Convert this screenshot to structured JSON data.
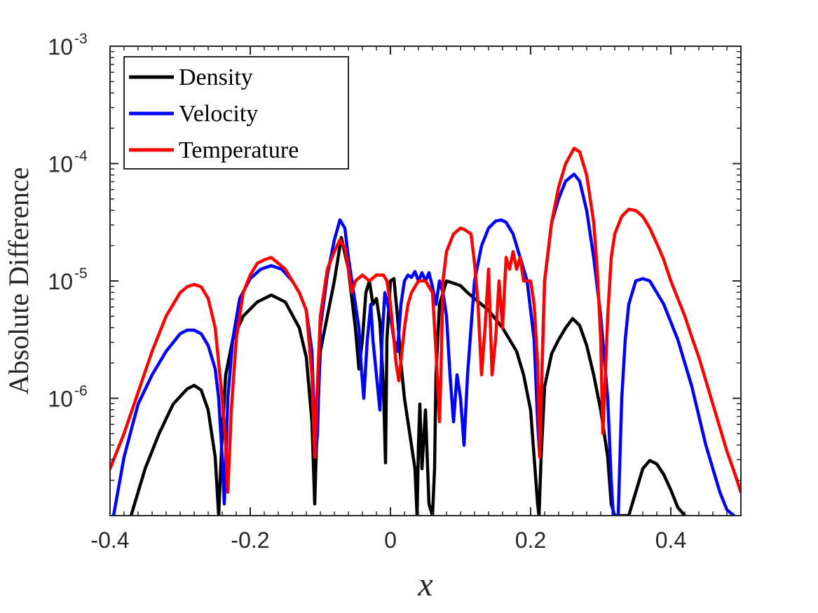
{
  "chart_data": {
    "type": "line",
    "title": "",
    "xlabel": "x",
    "ylabel": "Absolute Difference",
    "xlim": [
      -0.4,
      0.5
    ],
    "ylim_log10": [
      -7.0,
      -3.0
    ],
    "yscale": "log",
    "grid": false,
    "legend_position": "top-left",
    "x_ticks": [
      {
        "value": -0.4,
        "label": "-0.4"
      },
      {
        "value": -0.2,
        "label": "-0.2"
      },
      {
        "value": 0.0,
        "label": "0"
      },
      {
        "value": 0.2,
        "label": "0.2"
      },
      {
        "value": 0.4,
        "label": "0.4"
      }
    ],
    "y_ticks": [
      {
        "log10": -3,
        "base": "10",
        "exp": "-3"
      },
      {
        "log10": -4,
        "base": "10",
        "exp": "-4"
      },
      {
        "log10": -5,
        "base": "10",
        "exp": "-5"
      },
      {
        "log10": -6,
        "base": "10",
        "exp": "-6"
      }
    ],
    "series": [
      {
        "name": "Density",
        "color": "#000000",
        "x": [
          -0.37,
          -0.35,
          -0.33,
          -0.31,
          -0.29,
          -0.28,
          -0.27,
          -0.26,
          -0.25,
          -0.247,
          -0.245,
          -0.24,
          -0.235,
          -0.225,
          -0.21,
          -0.19,
          -0.17,
          -0.15,
          -0.13,
          -0.12,
          -0.112,
          -0.108,
          -0.105,
          -0.1,
          -0.09,
          -0.08,
          -0.07,
          -0.06,
          -0.05,
          -0.045,
          -0.04,
          -0.035,
          -0.03,
          -0.025,
          -0.02,
          -0.015,
          -0.01,
          -0.007,
          -0.005,
          0.0,
          0.005,
          0.01,
          0.015,
          0.02,
          0.025,
          0.03,
          0.035,
          0.038,
          0.04,
          0.042,
          0.045,
          0.05,
          0.055,
          0.06,
          0.063,
          0.065,
          0.07,
          0.08,
          0.09,
          0.1,
          0.11,
          0.12,
          0.14,
          0.16,
          0.18,
          0.19,
          0.2,
          0.21,
          0.212,
          0.215,
          0.22,
          0.23,
          0.24,
          0.25,
          0.26,
          0.27,
          0.28,
          0.29,
          0.3,
          0.31,
          0.315,
          0.32,
          0.325,
          0.33,
          0.34,
          0.35,
          0.36,
          0.37,
          0.38,
          0.39,
          0.4,
          0.41,
          0.42
        ],
        "log10_y": [
          -7.0,
          -6.6,
          -6.3,
          -6.05,
          -5.92,
          -5.89,
          -5.93,
          -6.1,
          -6.5,
          -6.8,
          -7.0,
          -6.3,
          -5.8,
          -5.5,
          -5.3,
          -5.18,
          -5.12,
          -5.18,
          -5.4,
          -5.65,
          -6.2,
          -6.9,
          -6.3,
          -5.6,
          -5.3,
          -5.0,
          -4.63,
          -4.9,
          -5.4,
          -5.75,
          -5.5,
          -5.1,
          -5.0,
          -5.2,
          -5.15,
          -5.35,
          -5.9,
          -6.55,
          -5.5,
          -5.0,
          -4.98,
          -5.3,
          -5.7,
          -6.0,
          -6.2,
          -6.4,
          -6.6,
          -7.0,
          -6.4,
          -6.05,
          -6.6,
          -6.1,
          -6.9,
          -7.0,
          -6.6,
          -5.8,
          -5.2,
          -5.0,
          -5.02,
          -5.04,
          -5.1,
          -5.15,
          -5.25,
          -5.4,
          -5.6,
          -5.8,
          -6.1,
          -6.9,
          -7.0,
          -6.5,
          -5.9,
          -5.62,
          -5.5,
          -5.4,
          -5.32,
          -5.38,
          -5.55,
          -5.8,
          -6.1,
          -6.5,
          -6.9,
          -7.0,
          -7.0,
          -7.0,
          -7.0,
          -6.8,
          -6.6,
          -6.53,
          -6.56,
          -6.65,
          -6.78,
          -6.93,
          -7.0
        ]
      },
      {
        "name": "Velocity",
        "color": "#0000ff",
        "x": [
          -0.395,
          -0.38,
          -0.36,
          -0.34,
          -0.32,
          -0.3,
          -0.29,
          -0.28,
          -0.27,
          -0.26,
          -0.25,
          -0.245,
          -0.24,
          -0.237,
          -0.232,
          -0.225,
          -0.215,
          -0.2,
          -0.185,
          -0.17,
          -0.155,
          -0.14,
          -0.13,
          -0.12,
          -0.112,
          -0.107,
          -0.104,
          -0.1,
          -0.09,
          -0.08,
          -0.072,
          -0.065,
          -0.06,
          -0.055,
          -0.05,
          -0.045,
          -0.042,
          -0.038,
          -0.033,
          -0.028,
          -0.025,
          -0.02,
          -0.015,
          -0.012,
          -0.008,
          -0.004,
          0.0,
          0.005,
          0.01,
          0.015,
          0.02,
          0.025,
          0.03,
          0.035,
          0.04,
          0.045,
          0.05,
          0.055,
          0.06,
          0.065,
          0.07,
          0.075,
          0.08,
          0.085,
          0.09,
          0.095,
          0.1,
          0.105,
          0.11,
          0.12,
          0.13,
          0.14,
          0.15,
          0.158,
          0.165,
          0.175,
          0.185,
          0.195,
          0.205,
          0.21,
          0.213,
          0.216,
          0.22,
          0.23,
          0.24,
          0.25,
          0.262,
          0.27,
          0.28,
          0.29,
          0.3,
          0.31,
          0.315,
          0.318,
          0.32,
          0.325,
          0.33,
          0.335,
          0.34,
          0.35,
          0.36,
          0.37,
          0.38,
          0.39,
          0.4,
          0.41,
          0.42,
          0.43,
          0.44,
          0.45,
          0.46,
          0.47,
          0.48,
          0.49
        ],
        "log10_y": [
          -7.0,
          -6.5,
          -6.05,
          -5.8,
          -5.6,
          -5.45,
          -5.42,
          -5.42,
          -5.45,
          -5.55,
          -5.75,
          -6.0,
          -6.5,
          -6.9,
          -6.0,
          -5.5,
          -5.15,
          -4.98,
          -4.9,
          -4.87,
          -4.9,
          -5.0,
          -5.1,
          -5.25,
          -5.6,
          -6.5,
          -6.3,
          -5.4,
          -4.95,
          -4.65,
          -4.48,
          -4.55,
          -4.8,
          -5.0,
          -5.2,
          -5.4,
          -5.7,
          -6.0,
          -5.5,
          -5.2,
          -5.5,
          -5.8,
          -6.1,
          -5.5,
          -5.1,
          -5.2,
          -5.3,
          -5.5,
          -5.6,
          -5.2,
          -5.0,
          -4.95,
          -4.97,
          -4.92,
          -5.0,
          -4.93,
          -5.0,
          -4.93,
          -5.05,
          -5.2,
          -5.0,
          -5.1,
          -5.3,
          -5.8,
          -6.2,
          -5.8,
          -6.0,
          -6.4,
          -5.8,
          -5.0,
          -4.7,
          -4.55,
          -4.49,
          -4.48,
          -4.5,
          -4.6,
          -4.8,
          -5.0,
          -5.5,
          -6.2,
          -6.5,
          -5.8,
          -5.0,
          -4.5,
          -4.3,
          -4.15,
          -4.09,
          -4.15,
          -4.4,
          -4.8,
          -5.3,
          -6.0,
          -6.7,
          -7.0,
          -7.0,
          -7.0,
          -6.0,
          -5.5,
          -5.2,
          -5.0,
          -4.98,
          -5.0,
          -5.1,
          -5.2,
          -5.35,
          -5.5,
          -5.7,
          -5.9,
          -6.15,
          -6.4,
          -6.6,
          -6.8,
          -6.95,
          -7.0
        ]
      },
      {
        "name": "Temperature",
        "color": "#ff0000",
        "x": [
          -0.4,
          -0.38,
          -0.36,
          -0.34,
          -0.32,
          -0.3,
          -0.29,
          -0.28,
          -0.27,
          -0.26,
          -0.25,
          -0.245,
          -0.24,
          -0.235,
          -0.232,
          -0.227,
          -0.22,
          -0.21,
          -0.2,
          -0.19,
          -0.18,
          -0.17,
          -0.16,
          -0.15,
          -0.14,
          -0.13,
          -0.12,
          -0.112,
          -0.108,
          -0.105,
          -0.1,
          -0.09,
          -0.08,
          -0.072,
          -0.065,
          -0.06,
          -0.055,
          -0.05,
          -0.04,
          -0.03,
          -0.02,
          -0.01,
          -0.005,
          0.0,
          0.005,
          0.008,
          0.012,
          0.02,
          0.025,
          0.03,
          0.04,
          0.05,
          0.06,
          0.065,
          0.07,
          0.072,
          0.075,
          0.08,
          0.09,
          0.1,
          0.105,
          0.11,
          0.115,
          0.12,
          0.125,
          0.13,
          0.135,
          0.14,
          0.145,
          0.15,
          0.155,
          0.16,
          0.165,
          0.17,
          0.175,
          0.18,
          0.185,
          0.19,
          0.2,
          0.205,
          0.21,
          0.213,
          0.216,
          0.22,
          0.23,
          0.24,
          0.25,
          0.262,
          0.27,
          0.28,
          0.29,
          0.295,
          0.3,
          0.303,
          0.306,
          0.31,
          0.315,
          0.32,
          0.33,
          0.34,
          0.35,
          0.36,
          0.37,
          0.38,
          0.39,
          0.4,
          0.41,
          0.42,
          0.43,
          0.44,
          0.45,
          0.46,
          0.47,
          0.48,
          0.49,
          0.5
        ],
        "log10_y": [
          -6.6,
          -6.3,
          -5.95,
          -5.6,
          -5.3,
          -5.1,
          -5.05,
          -5.03,
          -5.05,
          -5.15,
          -5.4,
          -5.7,
          -6.0,
          -6.4,
          -6.8,
          -6.1,
          -5.5,
          -5.1,
          -4.95,
          -4.85,
          -4.82,
          -4.8,
          -4.85,
          -4.9,
          -5.0,
          -5.1,
          -5.25,
          -5.8,
          -6.5,
          -6.0,
          -5.3,
          -4.9,
          -4.75,
          -4.65,
          -4.72,
          -4.9,
          -5.1,
          -5.0,
          -4.95,
          -5.0,
          -4.95,
          -4.95,
          -5.0,
          -5.2,
          -5.5,
          -5.7,
          -5.85,
          -5.4,
          -5.2,
          -5.1,
          -5.0,
          -5.0,
          -5.1,
          -5.6,
          -6.2,
          -5.8,
          -5.0,
          -4.75,
          -4.6,
          -4.55,
          -4.56,
          -4.58,
          -4.6,
          -4.85,
          -5.2,
          -5.8,
          -5.4,
          -4.9,
          -5.8,
          -5.5,
          -5.0,
          -5.4,
          -4.8,
          -4.9,
          -4.75,
          -4.9,
          -4.8,
          -5.0,
          -5.0,
          -5.2,
          -5.7,
          -6.5,
          -5.8,
          -5.0,
          -4.5,
          -4.2,
          -4.0,
          -3.87,
          -3.9,
          -4.1,
          -4.5,
          -4.9,
          -5.5,
          -6.3,
          -5.9,
          -5.3,
          -4.8,
          -4.6,
          -4.45,
          -4.39,
          -4.4,
          -4.45,
          -4.55,
          -4.68,
          -4.82,
          -5.0,
          -5.15,
          -5.3,
          -5.48,
          -5.65,
          -5.85,
          -6.05,
          -6.25,
          -6.45,
          -6.62,
          -6.8
        ]
      }
    ]
  }
}
